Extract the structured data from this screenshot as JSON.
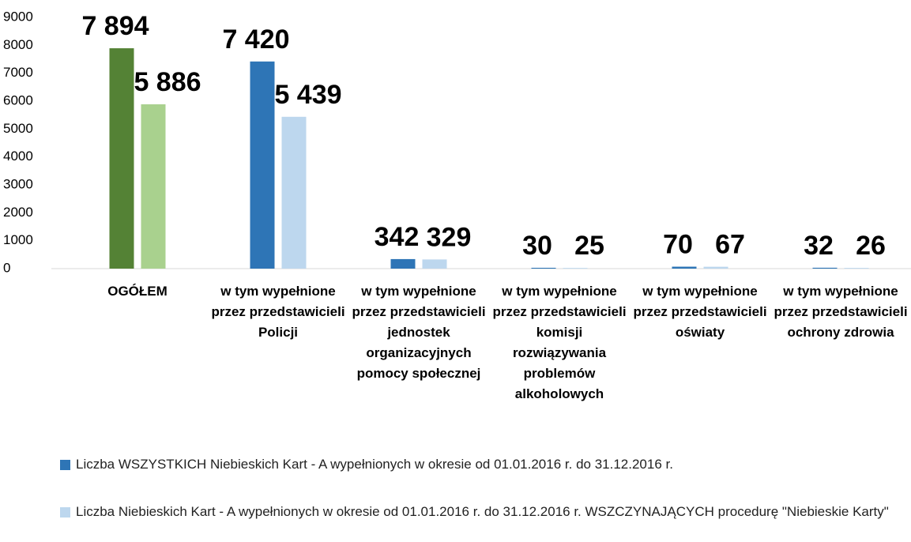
{
  "chart_data": {
    "type": "bar",
    "categories": [
      "OGÓŁEM",
      "w tym wypełnione przez przedstawicieli Policji",
      "w tym wypełnione przez przedstawicieli jednostek organizacyjnych pomocy społecznej",
      "w tym wypełnione przez przedstawicieli komisji rozwiązywania problemów alkoholowych",
      "w tym wypełnione przez przedstawicieli oświaty",
      "w tym wypełnione przez przedstawicieli ochrony zdrowia"
    ],
    "series": [
      {
        "name": "Liczba WSZYSTKICH Niebieskich Kart - A wypełnionych w okresie od 01.01.2016 r. do 31.12.2016 r.",
        "color": "#2e75b6",
        "point_colors": [
          "#548235",
          "#2e75b6",
          "#2e75b6",
          "#2e75b6",
          "#2e75b6",
          "#2e75b6"
        ],
        "values": [
          7894,
          7420,
          342,
          30,
          70,
          32
        ],
        "value_labels": [
          "7 894",
          "7 420",
          "342",
          "30",
          "70",
          "32"
        ]
      },
      {
        "name": "Liczba Niebieskich Kart - A wypełnionych w okresie od 01.01.2016 r. do 31.12.2016 r. WSZCZYNAJĄCYCH procedurę \"Niebieskie Karty\"",
        "color": "#bdd7ee",
        "point_colors": [
          "#a9d18e",
          "#bdd7ee",
          "#bdd7ee",
          "#bdd7ee",
          "#bdd7ee",
          "#bdd7ee"
        ],
        "values": [
          5886,
          5439,
          329,
          25,
          67,
          26
        ],
        "value_labels": [
          "5 886",
          "5 439",
          "329",
          "25",
          "67",
          "26"
        ]
      }
    ],
    "ylim": [
      0,
      9000
    ],
    "yticks": [
      0,
      1000,
      2000,
      3000,
      4000,
      5000,
      6000,
      7000,
      8000,
      9000
    ],
    "grid": false
  }
}
